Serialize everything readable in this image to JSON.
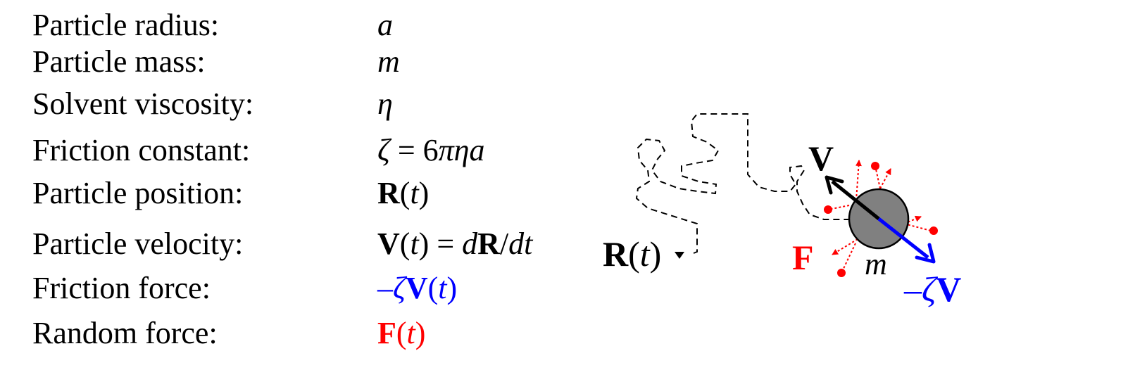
{
  "table": {
    "rows": [
      {
        "label": "Particle radius:",
        "symbol": "a"
      },
      {
        "label": "Particle mass:",
        "symbol": "m"
      },
      {
        "label": "Solvent viscosity:",
        "symbol": "η"
      },
      {
        "label": "Friction constant:",
        "symbol_prefix": "ζ",
        "symbol_eq": " = 6",
        "symbol_suffix": "πηa"
      },
      {
        "label": "Particle position:",
        "symbol_bold": "R",
        "symbol_open": "(",
        "symbol_arg": "t",
        "symbol_close": ")"
      },
      {
        "label": "Particle velocity:",
        "symbol_bold": "V",
        "symbol_open": "(",
        "symbol_arg": "t",
        "symbol_close": ")",
        "symbol_eq": " = ",
        "d1": "d",
        "bold2": "R",
        "slash": "/",
        "d2": "dt"
      },
      {
        "label": "Friction force:",
        "minus": "–",
        "zeta": "ζ",
        "symbol_bold": "V",
        "symbol_open": "(",
        "symbol_arg": "t",
        "symbol_close": ")"
      },
      {
        "label": "Random force:",
        "symbol_bold": "F",
        "symbol_open": "(",
        "symbol_arg": "t",
        "symbol_close": ")"
      }
    ]
  },
  "diagram": {
    "position_label": {
      "bold": "R",
      "open": "(",
      "arg": "t",
      "close": ")"
    },
    "velocity_label": "V",
    "force_label": "F",
    "mass_label": "m",
    "friction_label": {
      "minus": "–",
      "zeta": "ζ",
      "bold": "V"
    }
  },
  "colors": {
    "friction": "#0000ff",
    "random_force": "#ff0000",
    "particle_fill": "#808080",
    "text": "#000000"
  }
}
